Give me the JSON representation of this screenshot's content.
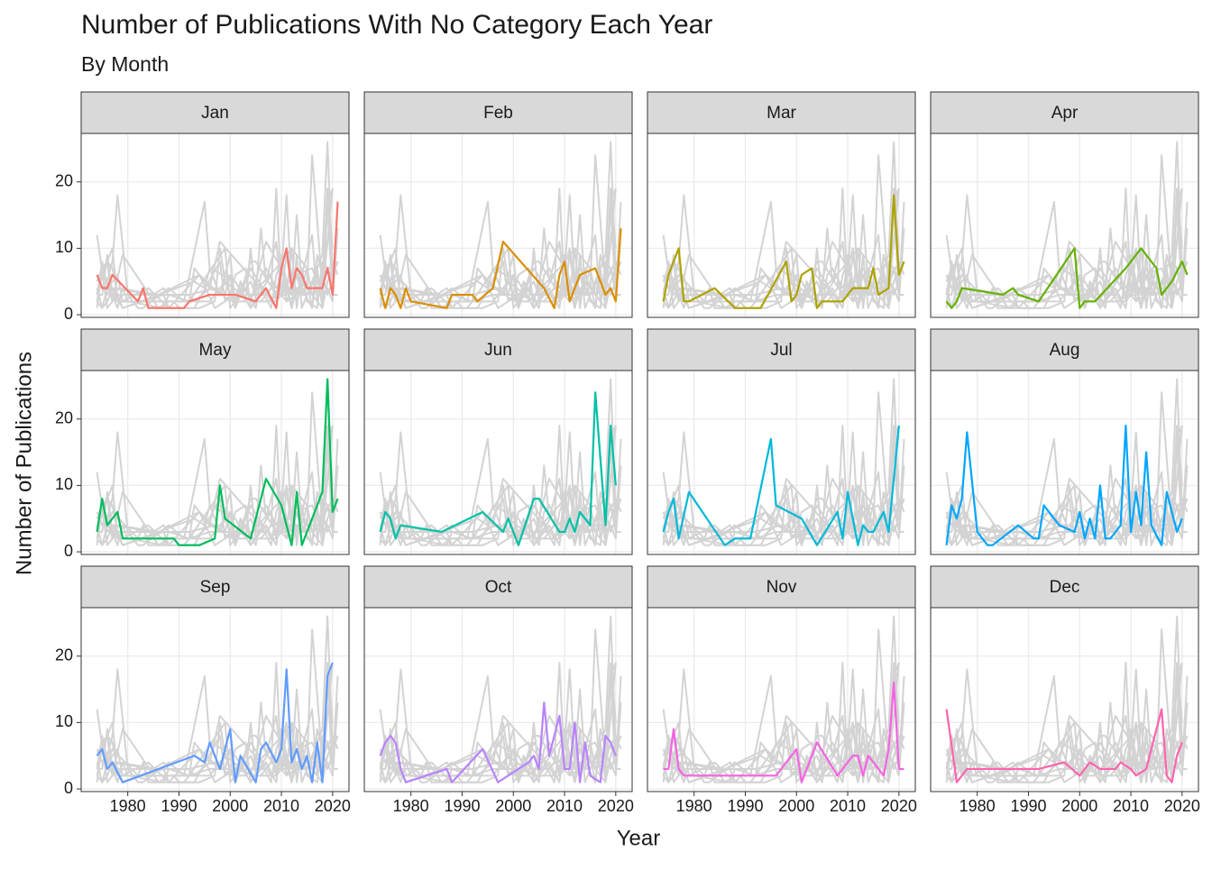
{
  "chart_data": {
    "type": "line",
    "title": "Number of Publications With No Category Each Year",
    "subtitle": "By Month",
    "x_label": "Year",
    "y_label": "Number of Publications",
    "xlim": [
      1970.9,
      2023.2
    ],
    "ylim": [
      -0.4,
      27.3
    ],
    "xticks": [
      1980,
      1990,
      2000,
      2010,
      2020
    ],
    "yticks": [
      0,
      10,
      20
    ],
    "grid": true,
    "background_color": "#d3d3d3",
    "series": [
      {
        "name": "Jan",
        "color": "#f8766d",
        "x": [
          1974,
          1975,
          1976,
          1977,
          1982,
          1983,
          1984,
          1991,
          1992,
          1996,
          2000,
          2001,
          2005,
          2007,
          2009,
          2010,
          2011,
          2012,
          2013,
          2014,
          2015,
          2018,
          2019,
          2020,
          2021
        ],
        "values": [
          6,
          4,
          4,
          6,
          2,
          4,
          1,
          1,
          2,
          3,
          3,
          3,
          2,
          4,
          1,
          7,
          10,
          4,
          7,
          6,
          4,
          4,
          7,
          3,
          17
        ]
      },
      {
        "name": "Feb",
        "color": "#db8e00",
        "x": [
          1974,
          1975,
          1976,
          1977,
          1978,
          1979,
          1980,
          1987,
          1988,
          1992,
          1993,
          1996,
          1998,
          2006,
          2008,
          2009,
          2010,
          2011,
          2013,
          2016,
          2018,
          2019,
          2020,
          2021
        ],
        "values": [
          4,
          1,
          4,
          3,
          1,
          4,
          2,
          1,
          3,
          3,
          2,
          4,
          11,
          4,
          1,
          6,
          8,
          2,
          6,
          7,
          3,
          4,
          2,
          13
        ]
      },
      {
        "name": "Mar",
        "color": "#aea200",
        "x": [
          1974,
          1975,
          1977,
          1978,
          1979,
          1984,
          1988,
          1993,
          1998,
          1999,
          2000,
          2001,
          2003,
          2004,
          2005,
          2007,
          2009,
          2011,
          2014,
          2015,
          2016,
          2018,
          2019,
          2020,
          2021
        ],
        "values": [
          2,
          6,
          10,
          2,
          2,
          4,
          1,
          1,
          8,
          2,
          3,
          6,
          7,
          1,
          2,
          2,
          2,
          4,
          4,
          7,
          3,
          4,
          18,
          6,
          8
        ]
      },
      {
        "name": "Apr",
        "color": "#64b200",
        "x": [
          1974,
          1975,
          1976,
          1977,
          1985,
          1987,
          1988,
          1992,
          1999,
          2000,
          2001,
          2003,
          2009,
          2012,
          2015,
          2016,
          2018,
          2020,
          2021
        ],
        "values": [
          2,
          1,
          2,
          4,
          3,
          4,
          3,
          2,
          10,
          1,
          2,
          2,
          7,
          10,
          7,
          3,
          5,
          8,
          6
        ]
      },
      {
        "name": "May",
        "color": "#00bd5c",
        "x": [
          1974,
          1975,
          1976,
          1978,
          1979,
          1989,
          1990,
          1994,
          1997,
          1998,
          1999,
          2004,
          2007,
          2010,
          2011,
          2012,
          2013,
          2014,
          2018,
          2019,
          2020,
          2021
        ],
        "values": [
          3,
          8,
          4,
          6,
          2,
          2,
          1,
          1,
          2,
          10,
          5,
          2,
          11,
          7,
          4,
          1,
          9,
          1,
          9,
          26,
          6,
          8
        ]
      },
      {
        "name": "Jun",
        "color": "#00c1a7",
        "x": [
          1974,
          1975,
          1976,
          1977,
          1978,
          1986,
          1994,
          1998,
          1999,
          2001,
          2004,
          2005,
          2009,
          2010,
          2011,
          2012,
          2013,
          2015,
          2016,
          2018,
          2019,
          2020
        ],
        "values": [
          3,
          6,
          5,
          2,
          4,
          3,
          6,
          3,
          5,
          1,
          8,
          8,
          3,
          3,
          5,
          3,
          6,
          4,
          24,
          4,
          19,
          10
        ]
      },
      {
        "name": "Jul",
        "color": "#00badb",
        "x": [
          1974,
          1975,
          1976,
          1977,
          1979,
          1986,
          1988,
          1991,
          1995,
          1996,
          2001,
          2004,
          2008,
          2009,
          2010,
          2011,
          2012,
          2013,
          2014,
          2015,
          2017,
          2018,
          2020
        ],
        "values": [
          3,
          6,
          8,
          2,
          9,
          1,
          2,
          2,
          17,
          7,
          5,
          1,
          6,
          2,
          9,
          5,
          1,
          4,
          3,
          3,
          6,
          3,
          19
        ]
      },
      {
        "name": "Aug",
        "color": "#00a6ff",
        "x": [
          1974,
          1975,
          1976,
          1977,
          1978,
          1980,
          1982,
          1983,
          1988,
          1991,
          1992,
          1993,
          1996,
          1999,
          2000,
          2001,
          2002,
          2003,
          2004,
          2005,
          2006,
          2008,
          2009,
          2010,
          2011,
          2012,
          2013,
          2014,
          2016,
          2017,
          2019,
          2020
        ],
        "values": [
          1,
          7,
          5,
          8,
          18,
          3,
          1,
          1,
          4,
          2,
          2,
          7,
          4,
          3,
          6,
          2,
          5,
          2,
          10,
          2,
          2,
          4,
          19,
          3,
          9,
          4,
          15,
          4,
          1,
          9,
          3,
          5
        ]
      },
      {
        "name": "Sep",
        "color": "#619cff",
        "x": [
          1974,
          1975,
          1976,
          1977,
          1979,
          1993,
          1995,
          1996,
          1998,
          2000,
          2001,
          2002,
          2005,
          2006,
          2007,
          2009,
          2010,
          2011,
          2012,
          2013,
          2014,
          2015,
          2016,
          2017,
          2018,
          2019,
          2020
        ],
        "values": [
          5,
          6,
          3,
          4,
          1,
          5,
          4,
          7,
          3,
          9,
          1,
          5,
          1,
          6,
          7,
          4,
          6,
          18,
          4,
          6,
          3,
          5,
          1,
          7,
          1,
          17,
          19
        ]
      },
      {
        "name": "Oct",
        "color": "#b983ff",
        "x": [
          1974,
          1975,
          1976,
          1977,
          1978,
          1979,
          1987,
          1988,
          1994,
          1997,
          2003,
          2004,
          2005,
          2006,
          2007,
          2009,
          2010,
          2011,
          2012,
          2013,
          2014,
          2015,
          2017,
          2018,
          2019,
          2020
        ],
        "values": [
          5,
          7,
          8,
          7,
          3,
          1,
          3,
          1,
          6,
          1,
          4,
          5,
          3,
          13,
          5,
          11,
          3,
          3,
          10,
          1,
          7,
          2,
          1,
          8,
          7,
          5
        ]
      },
      {
        "name": "Nov",
        "color": "#f564e3",
        "x": [
          1974,
          1975,
          1976,
          1977,
          1978,
          1996,
          2000,
          2001,
          2004,
          2008,
          2010,
          2011,
          2012,
          2013,
          2014,
          2016,
          2017,
          2018,
          2019,
          2020,
          2021
        ],
        "values": [
          3,
          3,
          9,
          3,
          2,
          2,
          6,
          1,
          7,
          2,
          4,
          5,
          5,
          2,
          5,
          3,
          2,
          6,
          16,
          3,
          3
        ]
      },
      {
        "name": "Dec",
        "color": "#ff64b0",
        "x": [
          1974,
          1976,
          1978,
          1992,
          1997,
          2000,
          2002,
          2004,
          2007,
          2008,
          2010,
          2011,
          2013,
          2016,
          2017,
          2018,
          2019,
          2020
        ],
        "values": [
          12,
          1,
          3,
          3,
          4,
          2,
          4,
          3,
          3,
          4,
          3,
          2,
          3,
          12,
          2,
          1,
          5,
          7
        ]
      }
    ]
  }
}
